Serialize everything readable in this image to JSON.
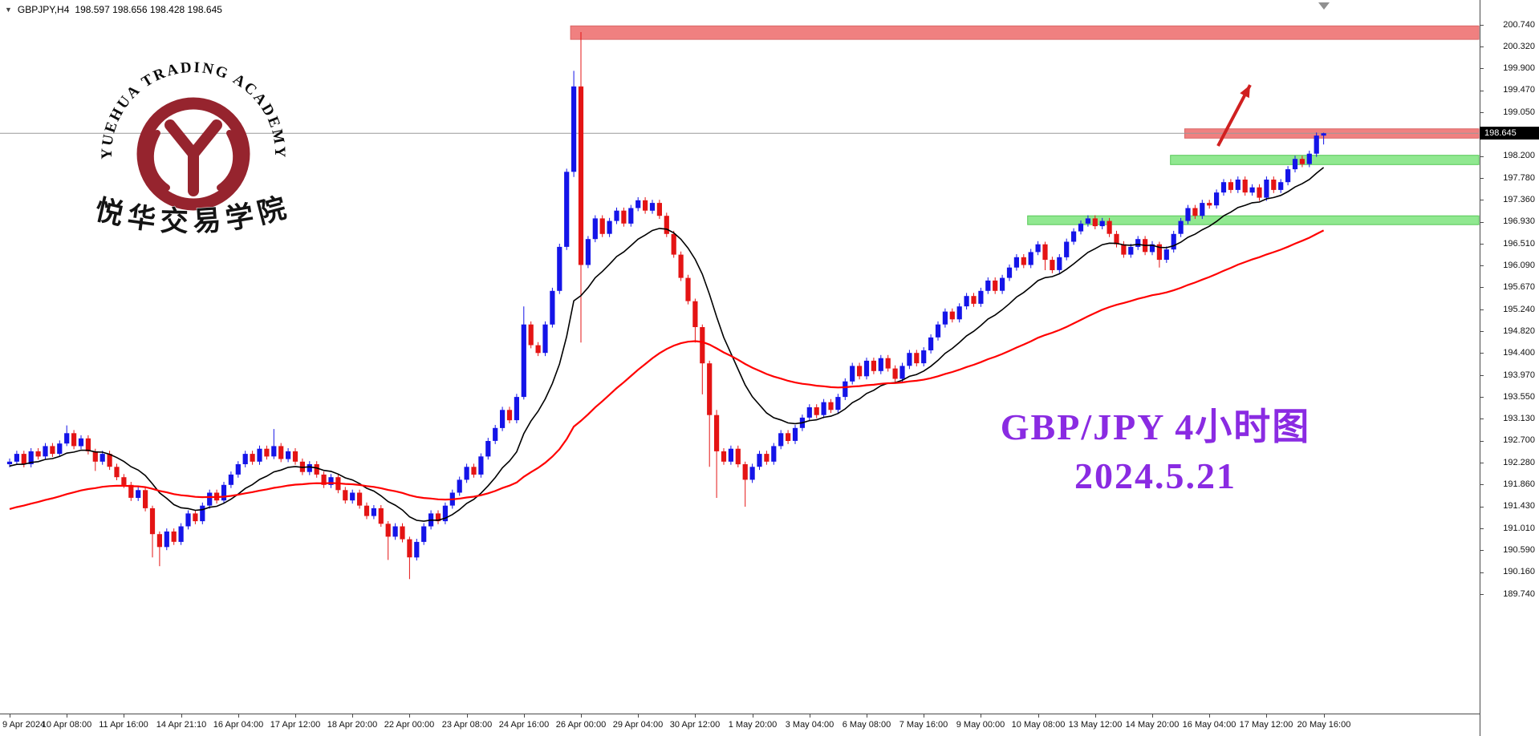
{
  "header": {
    "symbol": "GBPJPY,H4",
    "ohlc": "198.597 198.656 198.428 198.645"
  },
  "logo": {
    "arc_text": "YUEHUA TRADING ACADEMY",
    "cn_text": "悦华交易学院",
    "color": "#96242e"
  },
  "annotation": {
    "line1": "GBP/JPY 4小时图",
    "line2": "2024.5.21",
    "color": "#8A2BE2"
  },
  "price_tag": "198.645",
  "chart_data": {
    "type": "candlestick",
    "symbol": "GBPJPY",
    "timeframe": "H4",
    "title": "GBP/JPY 4小时图 2024.5.21",
    "current_price": 198.645,
    "ylim": [
      187.5,
      201.2
    ],
    "grid": false,
    "open_first": 192.25,
    "default_wick": 0.06,
    "closes": [
      192.3,
      192.45,
      192.25,
      192.5,
      192.4,
      192.6,
      192.45,
      192.65,
      192.85,
      192.6,
      192.75,
      192.5,
      192.3,
      192.45,
      192.2,
      192.0,
      191.85,
      191.6,
      191.75,
      191.4,
      190.9,
      190.65,
      190.95,
      190.75,
      191.05,
      191.3,
      191.15,
      191.45,
      191.7,
      191.55,
      191.85,
      192.05,
      192.25,
      192.45,
      192.3,
      192.55,
      192.4,
      192.6,
      192.35,
      192.5,
      192.3,
      192.1,
      192.25,
      192.05,
      191.85,
      192.0,
      191.75,
      191.55,
      191.7,
      191.45,
      191.25,
      191.4,
      191.1,
      190.85,
      191.05,
      190.8,
      190.45,
      190.75,
      191.05,
      191.3,
      191.15,
      191.45,
      191.7,
      191.95,
      192.2,
      192.05,
      192.4,
      192.7,
      192.95,
      193.3,
      193.1,
      193.55,
      194.95,
      194.55,
      194.4,
      194.95,
      195.6,
      196.45,
      197.9,
      199.55,
      196.1,
      196.6,
      197.0,
      196.7,
      196.95,
      197.15,
      196.9,
      197.2,
      197.35,
      197.15,
      197.3,
      197.05,
      196.7,
      196.3,
      195.85,
      195.4,
      194.9,
      194.2,
      193.2,
      192.5,
      192.3,
      192.55,
      192.25,
      191.95,
      192.2,
      192.45,
      192.3,
      192.6,
      192.85,
      192.7,
      192.95,
      193.15,
      193.35,
      193.2,
      193.45,
      193.3,
      193.55,
      193.85,
      194.15,
      193.95,
      194.25,
      194.05,
      194.3,
      194.1,
      193.9,
      194.15,
      194.4,
      194.2,
      194.45,
      194.7,
      194.95,
      195.2,
      195.05,
      195.3,
      195.5,
      195.35,
      195.6,
      195.8,
      195.6,
      195.85,
      196.05,
      196.25,
      196.1,
      196.35,
      196.5,
      196.2,
      196.0,
      196.25,
      196.55,
      196.75,
      196.9,
      197.0,
      196.85,
      196.95,
      196.7,
      196.5,
      196.3,
      196.45,
      196.6,
      196.35,
      196.5,
      196.2,
      196.4,
      196.7,
      196.95,
      197.2,
      197.05,
      197.3,
      197.25,
      197.5,
      197.7,
      197.55,
      197.75,
      197.5,
      197.6,
      197.4,
      197.75,
      197.55,
      197.7,
      197.95,
      198.15,
      198.05,
      198.25,
      198.6,
      198.645
    ],
    "wick_overrides": {
      "8": [
        0.15,
        0.05
      ],
      "12": [
        0.05,
        0.18
      ],
      "20": [
        0.05,
        0.45
      ],
      "21": [
        0.05,
        0.37
      ],
      "37": [
        0.33,
        0.05
      ],
      "53": [
        0.05,
        0.45
      ],
      "56": [
        0.05,
        0.42
      ],
      "72": [
        0.35,
        0.05
      ],
      "79": [
        0.3,
        0.1
      ],
      "80": [
        1.05,
        1.5
      ],
      "96": [
        0.05,
        0.3
      ],
      "97": [
        0.05,
        0.6
      ],
      "98": [
        0.05,
        1.0
      ],
      "99": [
        0.1,
        0.9
      ],
      "103": [
        0.05,
        0.52
      ],
      "145": [
        0.05,
        0.2
      ],
      "161": [
        0.05,
        0.15
      ],
      "184": [
        0.011,
        0.172
      ]
    },
    "time_labels": [
      "9 Apr 2024",
      "10 Apr 08:00",
      "11 Apr 16:00",
      "14 Apr 21:10",
      "16 Apr 04:00",
      "17 Apr 12:00",
      "18 Apr 20:00",
      "22 Apr 00:00",
      "23 Apr 08:00",
      "24 Apr 16:00",
      "26 Apr 00:00",
      "29 Apr 04:00",
      "30 Apr 12:00",
      "1 May 20:00",
      "3 May 04:00",
      "6 May 08:00",
      "7 May 16:00",
      "9 May 00:00",
      "10 May 08:00",
      "13 May 12:00",
      "14 May 20:00",
      "16 May 04:00",
      "17 May 12:00",
      "20 May 16:00"
    ],
    "label_every": 8,
    "price_axis_labels": [
      "200.740",
      "200.320",
      "199.900",
      "199.470",
      "199.050",
      "198.200",
      "197.780",
      "197.360",
      "196.930",
      "196.510",
      "196.090",
      "195.670",
      "195.240",
      "194.820",
      "194.400",
      "193.970",
      "193.550",
      "193.130",
      "192.700",
      "192.280",
      "191.860",
      "191.430",
      "191.010",
      "190.590",
      "190.160",
      "189.740"
    ],
    "colors": {
      "up": "#1414E8",
      "down": "#E41414",
      "price_line": "#999999",
      "axis_text": "#111111"
    },
    "indicators": [
      {
        "name": "ma-fast-line",
        "type": "ema",
        "period": 13,
        "seed": 192.2,
        "color": "#000000",
        "width": 1.6
      },
      {
        "name": "ma-slow-line",
        "type": "ema",
        "period": 55,
        "seed": 191.35,
        "color": "#FF0000",
        "width": 2.2
      }
    ],
    "zones": [
      {
        "type": "resistance",
        "price_top": 200.72,
        "price_bottom": 200.46,
        "start_index": 79,
        "color": "#F08080",
        "border": "#D96666"
      },
      {
        "type": "resistance",
        "price_top": 198.73,
        "price_bottom": 198.55,
        "start_index": 165,
        "color": "#F08080",
        "border": "#D96666"
      },
      {
        "type": "support",
        "price_top": 198.22,
        "price_bottom": 198.04,
        "start_index": 163,
        "color": "#90E890",
        "border": "#58C858"
      },
      {
        "type": "support",
        "price_top": 197.05,
        "price_bottom": 196.88,
        "start_index": 143,
        "color": "#90E890",
        "border": "#58C858"
      }
    ],
    "arrow": {
      "from": [
        1518,
        182
      ],
      "to": [
        1558,
        106
      ],
      "color": "#D02020"
    }
  }
}
